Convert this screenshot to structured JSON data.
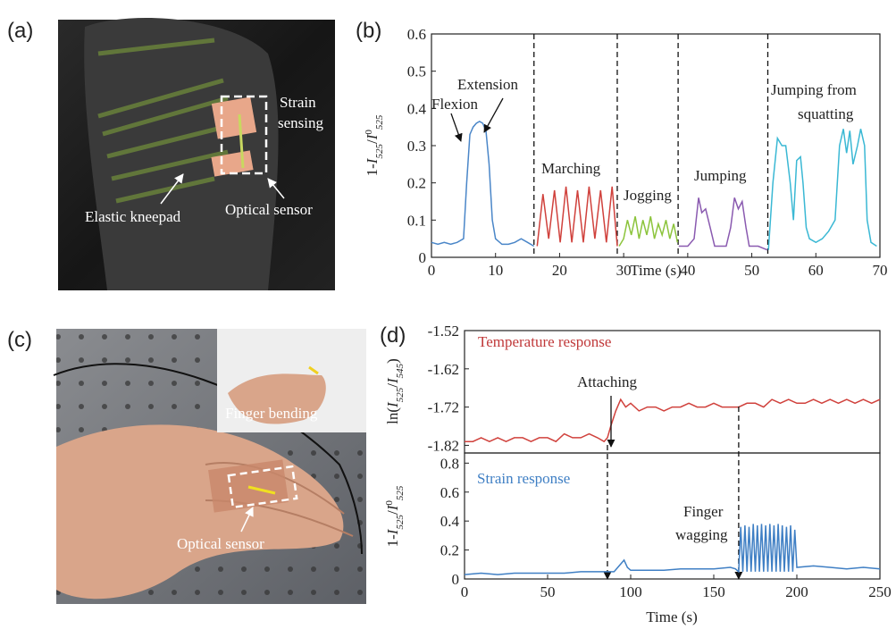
{
  "panel_labels": [
    "(a)",
    "(b)",
    "(c)",
    "(d)"
  ],
  "photos": [
    {
      "labels": [
        "Strain",
        "sensing",
        "Elastic kneepad",
        "Optical sensor"
      ]
    },
    {
      "labels": [
        "Finger bending",
        "Optical sensor"
      ]
    }
  ],
  "chart_data": [
    {
      "type": "line",
      "ylabel": [
        "1-",
        "I",
        "525",
        "/",
        "I",
        "0",
        "525"
      ],
      "xlabel": "Time (s)",
      "xlim": [
        0,
        70
      ],
      "xticks": [
        0,
        10,
        20,
        30,
        40,
        50,
        60,
        70
      ],
      "ylim": [
        0,
        0.6
      ],
      "yticks": [
        0,
        0.1,
        0.2,
        0.3,
        0.4,
        0.5,
        0.6
      ],
      "dividers": [
        16,
        29,
        38.5,
        52.5
      ],
      "annotations": [
        "Flexion",
        "Extension",
        "Marching",
        "Jogging",
        "Jumping",
        "Jumping from",
        "squatting"
      ],
      "series": [
        {
          "color": "#4a86c8",
          "x": [
            0,
            1,
            2,
            3,
            4,
            5,
            5.5,
            6,
            6.5,
            7,
            7.5,
            8,
            8.5,
            9,
            9.5,
            10,
            11,
            12,
            13,
            14,
            15,
            16
          ],
          "values": [
            0.04,
            0.035,
            0.04,
            0.035,
            0.04,
            0.05,
            0.2,
            0.33,
            0.35,
            0.36,
            0.365,
            0.36,
            0.34,
            0.25,
            0.1,
            0.05,
            0.035,
            0.035,
            0.04,
            0.05,
            0.04,
            0.03
          ]
        },
        {
          "color": "#d0413c",
          "x": [
            16.5,
            17.4,
            18.3,
            19.2,
            20.1,
            21,
            21.9,
            22.8,
            23.7,
            24.6,
            25.5,
            26.4,
            27.3,
            28.2,
            29
          ],
          "values": [
            0.03,
            0.17,
            0.05,
            0.18,
            0.04,
            0.19,
            0.04,
            0.18,
            0.04,
            0.19,
            0.05,
            0.18,
            0.04,
            0.19,
            0.03
          ]
        },
        {
          "color": "#8cc43c",
          "x": [
            29.3,
            30,
            30.6,
            31.2,
            31.8,
            32.4,
            33,
            33.6,
            34.2,
            34.8,
            35.4,
            36,
            36.6,
            37.2,
            37.8,
            38.4
          ],
          "values": [
            0.03,
            0.05,
            0.1,
            0.06,
            0.11,
            0.05,
            0.1,
            0.06,
            0.11,
            0.05,
            0.09,
            0.06,
            0.1,
            0.05,
            0.09,
            0.04
          ]
        },
        {
          "color": "#8a5ab0",
          "x": [
            38.6,
            40,
            41,
            41.7,
            42.2,
            42.8,
            43.5,
            44.2,
            46,
            46.7,
            47.3,
            47.9,
            48.5,
            49.1,
            49.6,
            51,
            52.4
          ],
          "values": [
            0.03,
            0.03,
            0.05,
            0.16,
            0.12,
            0.13,
            0.08,
            0.03,
            0.03,
            0.08,
            0.16,
            0.13,
            0.15,
            0.08,
            0.03,
            0.03,
            0.02
          ]
        },
        {
          "color": "#3ab8d4",
          "x": [
            52.6,
            53.3,
            54,
            54.7,
            55.3,
            56,
            56.5,
            57,
            57.6,
            58,
            58.5,
            59,
            60,
            61,
            62,
            63,
            63.7,
            64.3,
            64.8,
            65.3,
            65.8,
            66.5,
            67,
            67.6,
            68,
            68.6,
            69.5
          ],
          "values": [
            0.02,
            0.2,
            0.32,
            0.3,
            0.3,
            0.2,
            0.1,
            0.26,
            0.27,
            0.2,
            0.08,
            0.05,
            0.04,
            0.05,
            0.07,
            0.1,
            0.3,
            0.345,
            0.28,
            0.34,
            0.25,
            0.3,
            0.345,
            0.3,
            0.1,
            0.04,
            0.03
          ]
        }
      ]
    },
    {
      "type": "line",
      "ylabel": [
        "ln(",
        "I",
        "525",
        "/",
        "I",
        "545",
        ")"
      ],
      "xlim": [
        0,
        250
      ],
      "ylim": [
        -1.84,
        -1.52
      ],
      "yticks": [
        -1.52,
        -1.62,
        -1.72,
        -1.82
      ],
      "annotations": [
        "Temperature response",
        "Attaching"
      ],
      "series": [
        {
          "color": "#d0413c",
          "x": [
            0,
            5,
            10,
            15,
            20,
            25,
            30,
            35,
            40,
            45,
            50,
            55,
            60,
            65,
            70,
            75,
            80,
            84,
            86,
            88,
            91,
            94,
            97,
            100,
            105,
            110,
            115,
            120,
            125,
            130,
            135,
            140,
            145,
            150,
            155,
            160,
            165,
            170,
            175,
            180,
            185,
            190,
            195,
            200,
            205,
            210,
            215,
            220,
            225,
            230,
            235,
            240,
            245,
            250
          ],
          "values": [
            -1.81,
            -1.81,
            -1.8,
            -1.81,
            -1.8,
            -1.81,
            -1.8,
            -1.8,
            -1.81,
            -1.8,
            -1.8,
            -1.81,
            -1.79,
            -1.8,
            -1.8,
            -1.79,
            -1.8,
            -1.81,
            -1.8,
            -1.77,
            -1.73,
            -1.7,
            -1.72,
            -1.71,
            -1.73,
            -1.72,
            -1.72,
            -1.73,
            -1.72,
            -1.72,
            -1.71,
            -1.72,
            -1.72,
            -1.71,
            -1.72,
            -1.72,
            -1.72,
            -1.71,
            -1.71,
            -1.72,
            -1.7,
            -1.71,
            -1.7,
            -1.71,
            -1.71,
            -1.7,
            -1.71,
            -1.7,
            -1.71,
            -1.7,
            -1.71,
            -1.7,
            -1.71,
            -1.7
          ]
        }
      ]
    },
    {
      "type": "line",
      "ylabel": [
        "1-",
        "I",
        "525",
        "/",
        "I",
        "0",
        "525"
      ],
      "xlabel": "Time (s)",
      "xlim": [
        0,
        250
      ],
      "xticks": [
        0,
        50,
        100,
        150,
        200,
        250
      ],
      "ylim": [
        0,
        0.87
      ],
      "yticks": [
        0,
        0.2,
        0.4,
        0.6,
        0.8
      ],
      "dividers": [
        86,
        165
      ],
      "annotations": [
        "Strain response",
        "Finger",
        "wagging"
      ],
      "series": [
        {
          "color": "#3f7fc4",
          "x": [
            0,
            10,
            20,
            30,
            40,
            50,
            60,
            70,
            80,
            85,
            90,
            93,
            96,
            98,
            100,
            110,
            120,
            130,
            140,
            150,
            160,
            163,
            165,
            166.25,
            167.5,
            168.75,
            170,
            171.25,
            172.5,
            173.75,
            175,
            176.25,
            177.5,
            178.75,
            180,
            181.25,
            182.5,
            183.75,
            185,
            186.25,
            187.5,
            188.75,
            190,
            191.25,
            192.5,
            193.75,
            195,
            196.25,
            197.5,
            198.75,
            200,
            210,
            220,
            230,
            240,
            250
          ],
          "values": [
            0.03,
            0.04,
            0.03,
            0.04,
            0.04,
            0.04,
            0.04,
            0.05,
            0.05,
            0.05,
            0.05,
            0.09,
            0.13,
            0.08,
            0.06,
            0.06,
            0.06,
            0.07,
            0.07,
            0.07,
            0.08,
            0.07,
            0.05,
            0.36,
            0.05,
            0.37,
            0.05,
            0.36,
            0.05,
            0.38,
            0.05,
            0.37,
            0.05,
            0.38,
            0.05,
            0.37,
            0.05,
            0.38,
            0.05,
            0.37,
            0.05,
            0.38,
            0.05,
            0.37,
            0.05,
            0.36,
            0.05,
            0.37,
            0.05,
            0.34,
            0.08,
            0.09,
            0.08,
            0.07,
            0.08,
            0.07
          ]
        }
      ]
    }
  ]
}
